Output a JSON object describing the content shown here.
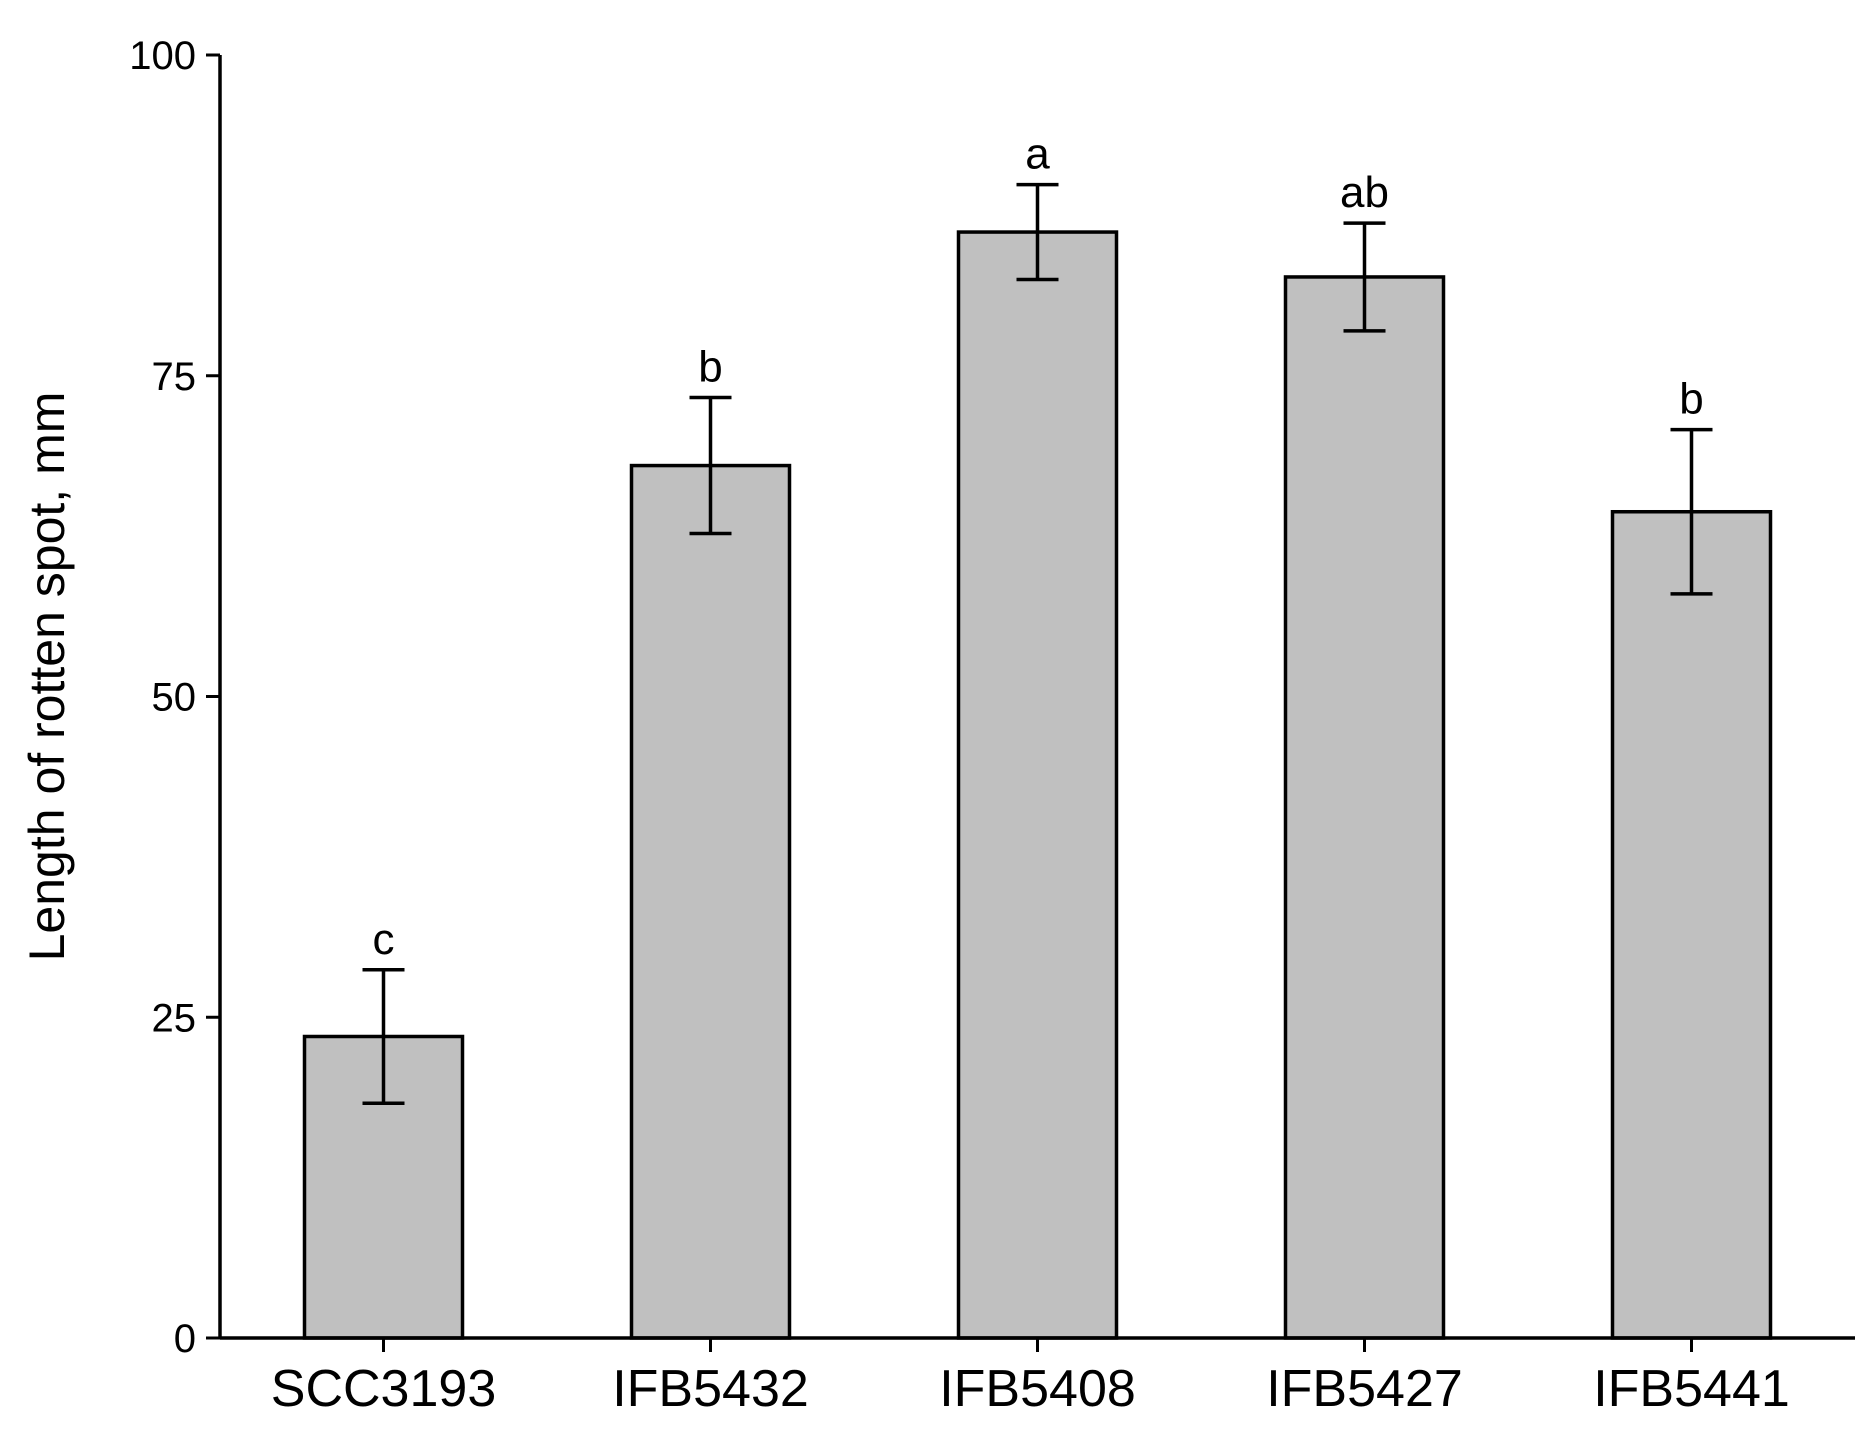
{
  "chart_data": {
    "type": "bar",
    "title": "",
    "xlabel": "",
    "ylabel": "Length of rotten spot, mm",
    "ylim": [
      0,
      100
    ],
    "yticks": [
      0,
      25,
      50,
      75,
      100
    ],
    "grid": false,
    "legend": "none",
    "categories": [
      "SCC3193",
      "IFB5432",
      "IFB5408",
      "IFB5427",
      "IFB5441"
    ],
    "values": [
      23.5,
      68,
      86.2,
      82.7,
      64.4
    ],
    "errors": [
      5.2,
      5.3,
      3.7,
      4.2,
      6.4
    ],
    "significance_labels": [
      "c",
      "b",
      "a",
      "ab",
      "b"
    ],
    "bar_color": "#c0c0c0",
    "edge_color": "#000000"
  }
}
